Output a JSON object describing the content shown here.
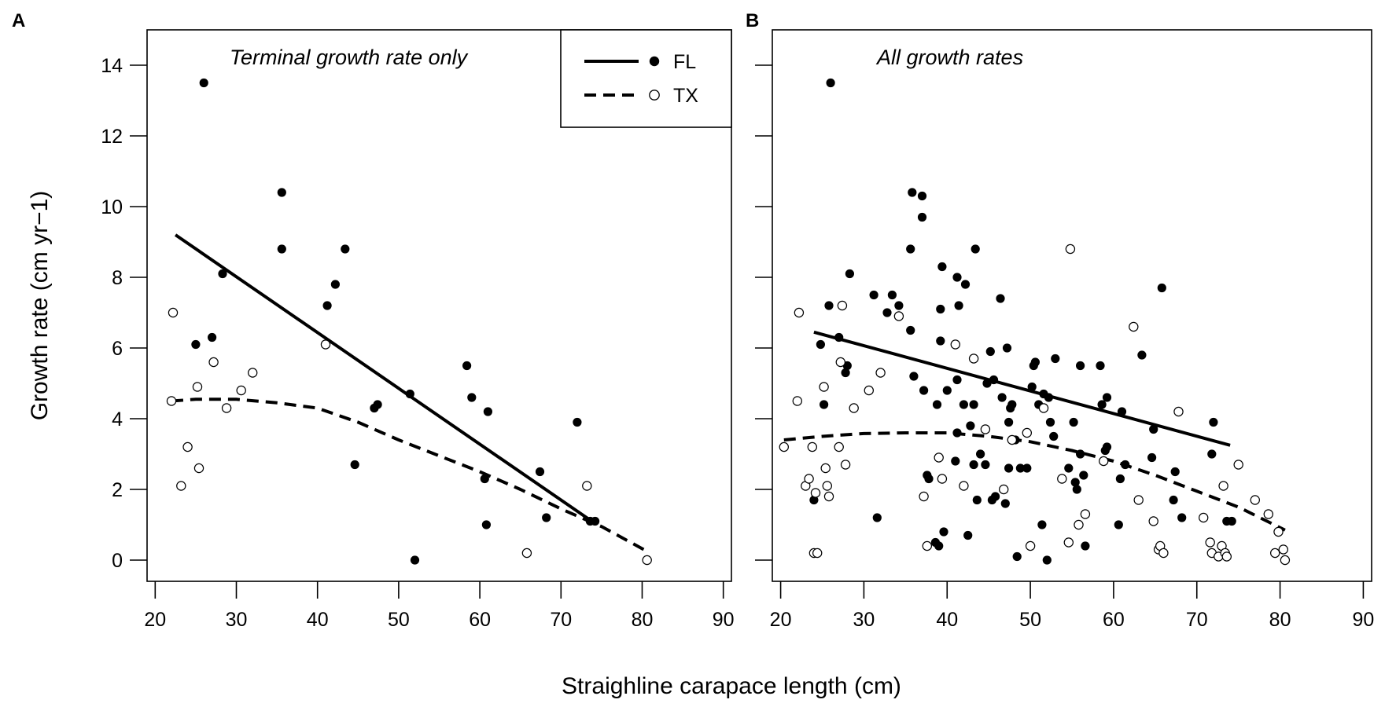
{
  "chart_data": [
    {
      "type": "scatter",
      "panel_label": "A",
      "title": "Terminal growth rate only",
      "xlabel": "Straighline carapace length (cm)",
      "ylabel": "Growth rate (cm yr−1)",
      "xlim": [
        19,
        91
      ],
      "ylim": [
        -0.6,
        15
      ],
      "xticks": [
        "20",
        "30",
        "40",
        "50",
        "60",
        "70",
        "80",
        "90"
      ],
      "yticks": [
        "0",
        "2",
        "4",
        "6",
        "8",
        "10",
        "12",
        "14"
      ],
      "legend": {
        "position": "top-right",
        "entries": [
          {
            "label": "FL",
            "line": "solid",
            "marker": "filled"
          },
          {
            "label": "TX",
            "line": "dashed",
            "marker": "open"
          }
        ]
      },
      "series": [
        {
          "name": "FL",
          "marker": "filled",
          "points": [
            [
              25.0,
              6.1
            ],
            [
              26.0,
              13.5
            ],
            [
              27.0,
              6.3
            ],
            [
              28.3,
              8.1
            ],
            [
              35.6,
              10.4
            ],
            [
              35.6,
              8.8
            ],
            [
              41.2,
              7.2
            ],
            [
              42.2,
              7.8
            ],
            [
              43.4,
              8.8
            ],
            [
              44.6,
              2.7
            ],
            [
              47.0,
              4.3
            ],
            [
              47.4,
              4.4
            ],
            [
              51.4,
              4.7
            ],
            [
              52.0,
              0.0
            ],
            [
              58.4,
              5.5
            ],
            [
              59.0,
              4.6
            ],
            [
              60.6,
              2.3
            ],
            [
              60.8,
              1.0
            ],
            [
              61.0,
              4.2
            ],
            [
              67.4,
              2.5
            ],
            [
              68.2,
              1.2
            ],
            [
              72.0,
              3.9
            ],
            [
              73.6,
              1.1
            ],
            [
              74.2,
              1.1
            ]
          ]
        },
        {
          "name": "TX",
          "marker": "open",
          "points": [
            [
              22.0,
              4.5
            ],
            [
              22.2,
              7.0
            ],
            [
              23.2,
              2.1
            ],
            [
              24.0,
              3.2
            ],
            [
              25.2,
              4.9
            ],
            [
              25.4,
              2.6
            ],
            [
              27.2,
              5.6
            ],
            [
              28.8,
              4.3
            ],
            [
              30.6,
              4.8
            ],
            [
              32.0,
              5.3
            ],
            [
              41.0,
              6.1
            ],
            [
              65.8,
              0.2
            ],
            [
              73.2,
              2.1
            ],
            [
              80.6,
              0.0
            ]
          ]
        },
        {
          "name": "FL fit",
          "line": "solid",
          "points": [
            [
              22.5,
              9.2
            ],
            [
              73.8,
              1.1
            ]
          ]
        },
        {
          "name": "TX fit",
          "line": "dashed",
          "points": [
            [
              22.0,
              4.5
            ],
            [
              25.0,
              4.55
            ],
            [
              30.0,
              4.55
            ],
            [
              35.0,
              4.45
            ],
            [
              40.0,
              4.3
            ],
            [
              45.0,
              3.9
            ],
            [
              50.0,
              3.4
            ],
            [
              55.0,
              2.95
            ],
            [
              60.0,
              2.5
            ],
            [
              65.0,
              2.0
            ],
            [
              70.0,
              1.45
            ],
            [
              75.0,
              0.95
            ],
            [
              80.6,
              0.25
            ]
          ]
        }
      ]
    },
    {
      "type": "scatter",
      "panel_label": "B",
      "title": "All growth rates",
      "xlabel": "Straighline carapace length (cm)",
      "ylabel": "Growth rate (cm yr−1)",
      "xlim": [
        19,
        91
      ],
      "ylim": [
        -0.6,
        15
      ],
      "xticks": [
        "20",
        "30",
        "40",
        "50",
        "60",
        "70",
        "80",
        "90"
      ],
      "yticks": [],
      "series": [
        {
          "name": "FL",
          "marker": "filled",
          "points": [
            [
              24.0,
              1.7
            ],
            [
              24.8,
              6.1
            ],
            [
              25.2,
              4.4
            ],
            [
              25.8,
              7.2
            ],
            [
              26.0,
              13.5
            ],
            [
              27.0,
              6.3
            ],
            [
              27.8,
              5.3
            ],
            [
              28.0,
              5.5
            ],
            [
              28.3,
              8.1
            ],
            [
              31.2,
              7.5
            ],
            [
              31.6,
              1.2
            ],
            [
              32.8,
              7.0
            ],
            [
              33.4,
              7.5
            ],
            [
              34.2,
              7.2
            ],
            [
              35.6,
              8.8
            ],
            [
              35.6,
              6.5
            ],
            [
              35.8,
              10.4
            ],
            [
              36.0,
              5.2
            ],
            [
              37.0,
              10.3
            ],
            [
              37.0,
              9.7
            ],
            [
              37.2,
              4.8
            ],
            [
              37.6,
              2.4
            ],
            [
              37.8,
              2.3
            ],
            [
              38.6,
              0.5
            ],
            [
              38.8,
              4.4
            ],
            [
              39.0,
              0.4
            ],
            [
              39.2,
              6.2
            ],
            [
              39.2,
              7.1
            ],
            [
              39.4,
              8.3
            ],
            [
              39.6,
              0.8
            ],
            [
              40.0,
              4.8
            ],
            [
              41.2,
              8.0
            ],
            [
              41.2,
              5.1
            ],
            [
              41.4,
              7.2
            ],
            [
              41.2,
              3.6
            ],
            [
              41.0,
              2.8
            ],
            [
              42.0,
              4.4
            ],
            [
              42.2,
              7.8
            ],
            [
              42.5,
              0.7
            ],
            [
              42.8,
              3.8
            ],
            [
              43.2,
              4.4
            ],
            [
              43.2,
              2.7
            ],
            [
              43.4,
              8.8
            ],
            [
              43.6,
              1.7
            ],
            [
              44.0,
              3.0
            ],
            [
              44.6,
              2.7
            ],
            [
              44.8,
              5.0
            ],
            [
              45.2,
              5.9
            ],
            [
              45.4,
              1.7
            ],
            [
              45.6,
              5.1
            ],
            [
              45.8,
              1.8
            ],
            [
              46.4,
              7.4
            ],
            [
              46.6,
              4.6
            ],
            [
              47.0,
              1.6
            ],
            [
              47.2,
              6.0
            ],
            [
              47.4,
              3.9
            ],
            [
              47.4,
              2.6
            ],
            [
              47.6,
              4.3
            ],
            [
              47.8,
              4.4
            ],
            [
              48.2,
              3.4
            ],
            [
              48.4,
              0.1
            ],
            [
              48.8,
              2.6
            ],
            [
              49.6,
              2.6
            ],
            [
              50.2,
              4.9
            ],
            [
              50.4,
              5.5
            ],
            [
              50.6,
              5.6
            ],
            [
              51.0,
              4.4
            ],
            [
              51.4,
              1.0
            ],
            [
              51.6,
              4.7
            ],
            [
              52.0,
              0.0
            ],
            [
              52.2,
              4.6
            ],
            [
              52.4,
              3.9
            ],
            [
              52.8,
              3.5
            ],
            [
              53.0,
              5.7
            ],
            [
              54.6,
              2.6
            ],
            [
              55.2,
              3.9
            ],
            [
              55.4,
              2.2
            ],
            [
              55.6,
              2.0
            ],
            [
              56.0,
              3.0
            ],
            [
              56.0,
              5.5
            ],
            [
              56.4,
              2.4
            ],
            [
              56.6,
              0.4
            ],
            [
              58.4,
              5.5
            ],
            [
              58.6,
              4.4
            ],
            [
              58.8,
              2.8
            ],
            [
              59.0,
              3.1
            ],
            [
              59.2,
              3.2
            ],
            [
              59.2,
              4.6
            ],
            [
              60.6,
              1.0
            ],
            [
              60.8,
              2.3
            ],
            [
              61.0,
              4.2
            ],
            [
              61.4,
              2.7
            ],
            [
              63.4,
              5.8
            ],
            [
              64.6,
              2.9
            ],
            [
              64.8,
              3.7
            ],
            [
              65.8,
              7.7
            ],
            [
              67.2,
              1.7
            ],
            [
              67.4,
              2.5
            ],
            [
              68.2,
              1.2
            ],
            [
              71.8,
              3.0
            ],
            [
              72.0,
              3.9
            ],
            [
              73.6,
              1.1
            ],
            [
              74.2,
              1.1
            ]
          ]
        },
        {
          "name": "TX",
          "marker": "open",
          "points": [
            [
              20.4,
              3.2
            ],
            [
              22.0,
              4.5
            ],
            [
              22.2,
              7.0
            ],
            [
              23.0,
              2.1
            ],
            [
              23.4,
              2.3
            ],
            [
              23.8,
              3.2
            ],
            [
              24.0,
              0.2
            ],
            [
              24.2,
              1.9
            ],
            [
              24.4,
              0.2
            ],
            [
              25.2,
              4.9
            ],
            [
              25.4,
              2.6
            ],
            [
              25.6,
              2.1
            ],
            [
              25.8,
              1.8
            ],
            [
              27.0,
              3.2
            ],
            [
              27.2,
              5.6
            ],
            [
              27.4,
              7.2
            ],
            [
              27.8,
              2.7
            ],
            [
              28.8,
              4.3
            ],
            [
              30.6,
              4.8
            ],
            [
              32.0,
              5.3
            ],
            [
              34.2,
              6.9
            ],
            [
              37.2,
              1.8
            ],
            [
              37.6,
              0.4
            ],
            [
              39.0,
              2.9
            ],
            [
              39.4,
              2.3
            ],
            [
              41.0,
              6.1
            ],
            [
              42.0,
              2.1
            ],
            [
              43.2,
              5.7
            ],
            [
              44.6,
              3.7
            ],
            [
              46.8,
              2.0
            ],
            [
              47.8,
              3.4
            ],
            [
              49.6,
              3.6
            ],
            [
              50.0,
              0.4
            ],
            [
              51.6,
              4.3
            ],
            [
              53.8,
              2.3
            ],
            [
              54.6,
              0.5
            ],
            [
              54.8,
              8.8
            ],
            [
              55.8,
              1.0
            ],
            [
              56.6,
              1.3
            ],
            [
              58.8,
              2.8
            ],
            [
              62.4,
              6.6
            ],
            [
              63.0,
              1.7
            ],
            [
              64.8,
              1.1
            ],
            [
              65.4,
              0.3
            ],
            [
              65.6,
              0.4
            ],
            [
              66.0,
              0.2
            ],
            [
              67.8,
              4.2
            ],
            [
              70.8,
              1.2
            ],
            [
              71.6,
              0.5
            ],
            [
              71.8,
              0.2
            ],
            [
              72.6,
              0.1
            ],
            [
              73.0,
              0.4
            ],
            [
              73.2,
              2.1
            ],
            [
              73.4,
              0.2
            ],
            [
              73.6,
              0.1
            ],
            [
              75.0,
              2.7
            ],
            [
              77.0,
              1.7
            ],
            [
              78.6,
              1.3
            ],
            [
              79.4,
              0.2
            ],
            [
              79.8,
              0.8
            ],
            [
              80.4,
              0.3
            ],
            [
              80.6,
              0.0
            ]
          ]
        },
        {
          "name": "FL fit",
          "line": "solid",
          "points": [
            [
              24.0,
              6.45
            ],
            [
              74.0,
              3.25
            ]
          ]
        },
        {
          "name": "TX fit",
          "line": "dashed",
          "points": [
            [
              20.4,
              3.4
            ],
            [
              25.0,
              3.5
            ],
            [
              30.0,
              3.58
            ],
            [
              35.0,
              3.6
            ],
            [
              40.0,
              3.6
            ],
            [
              45.0,
              3.5
            ],
            [
              50.0,
              3.35
            ],
            [
              55.0,
              3.1
            ],
            [
              60.0,
              2.8
            ],
            [
              65.0,
              2.4
            ],
            [
              70.0,
              1.95
            ],
            [
              75.0,
              1.5
            ],
            [
              80.6,
              0.85
            ]
          ]
        }
      ]
    }
  ]
}
